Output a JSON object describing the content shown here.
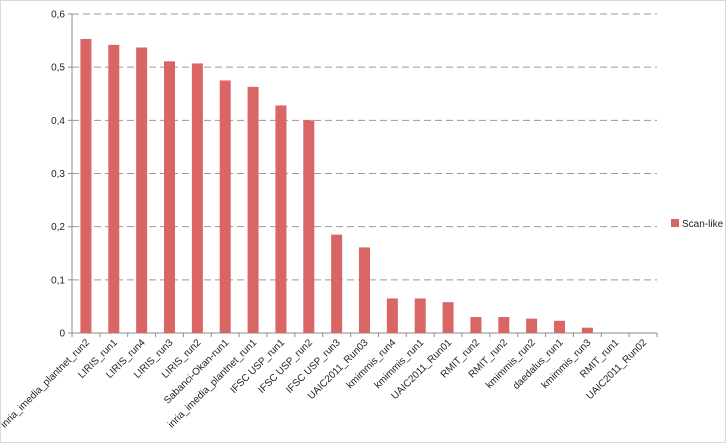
{
  "chart_data": {
    "type": "bar",
    "title": "",
    "xlabel": "",
    "ylabel": "",
    "ylim": [
      0,
      0.6
    ],
    "yticks": [
      "0",
      "0,1",
      "0,2",
      "0,3",
      "0,4",
      "0,5",
      "0,6"
    ],
    "grid": "horizontal dashed",
    "legend_position": "right",
    "categories": [
      "inria_imedia_plantnet_run2",
      "LIRIS_run1",
      "LIRIS_run4",
      "LIRIS_run3",
      "LIRIS_run2",
      "Sabanci-Okan-run1",
      "inria_imedia_plantnet_run1",
      "IFSC USP_run1",
      "IFSC USP_run2",
      "IFSC USP_run3",
      "UAIC2011_Run03",
      "kmimmis_run4",
      "kmimmis_run1",
      "UAIC2011_Run01",
      "RMIT_run2",
      "RMIT_run2",
      "kmimmis_run2",
      "daedalus_run1",
      "kmimmis_run3",
      "RMIT_run1",
      "UAIC2011_Run02"
    ],
    "series": [
      {
        "name": "Scan-like",
        "color": "#d96565",
        "values": [
          0.553,
          0.542,
          0.537,
          0.511,
          0.507,
          0.475,
          0.463,
          0.428,
          0.4,
          0.185,
          0.161,
          0.065,
          0.065,
          0.058,
          0.03,
          0.03,
          0.027,
          0.023,
          0.01,
          0.0,
          0.0
        ]
      }
    ]
  }
}
